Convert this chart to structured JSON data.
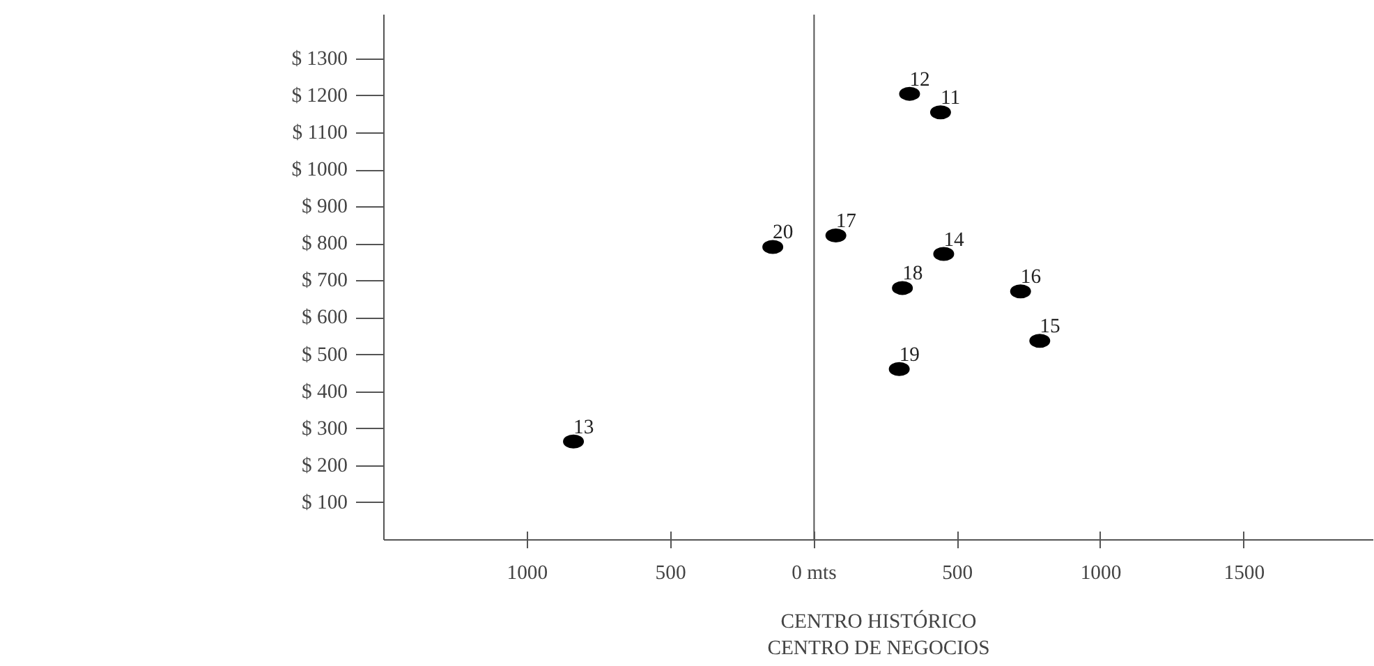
{
  "chart_data": {
    "type": "scatter",
    "xlabel": "CENTRO HISTÓRICO\nCENTRO DE NEGOCIOS",
    "xlim": [
      -1500,
      1950
    ],
    "ylim": [
      0,
      1420
    ],
    "xticks": [
      {
        "value": -1000,
        "label": "1000"
      },
      {
        "value": -500,
        "label": "500"
      },
      {
        "value": 0,
        "label": "0 mts"
      },
      {
        "value": 500,
        "label": "500"
      },
      {
        "value": 1000,
        "label": "1000"
      },
      {
        "value": 1500,
        "label": "1500"
      }
    ],
    "yticks": [
      {
        "value": 100,
        "label": "$ 100"
      },
      {
        "value": 200,
        "label": "$ 200"
      },
      {
        "value": 300,
        "label": "$ 300"
      },
      {
        "value": 400,
        "label": "$ 400"
      },
      {
        "value": 500,
        "label": "$ 500"
      },
      {
        "value": 600,
        "label": "$ 600"
      },
      {
        "value": 700,
        "label": "$ 700"
      },
      {
        "value": 800,
        "label": "$ 800"
      },
      {
        "value": 900,
        "label": "$ 900"
      },
      {
        "value": 1000,
        "label": "$ 1000"
      },
      {
        "value": 1100,
        "label": "$ 1100"
      },
      {
        "value": 1200,
        "label": "$ 1200"
      },
      {
        "value": 1300,
        "label": "$ 1300"
      }
    ],
    "grid": false,
    "marker": "circle",
    "ref_lines": [
      {
        "axis": "x",
        "value": 0,
        "color": "#555555"
      }
    ],
    "series": [
      {
        "name": "12",
        "color": "#000000",
        "x": [
          333
        ],
        "values": [
          1206
        ]
      },
      {
        "name": "11",
        "color": "#000000",
        "x": [
          441
        ],
        "values": [
          1156
        ]
      },
      {
        "name": "20",
        "color": "#000000",
        "x": [
          -144
        ],
        "values": [
          792
        ]
      },
      {
        "name": "17",
        "color": "#000000",
        "x": [
          76
        ],
        "values": [
          823
        ]
      },
      {
        "name": "14",
        "color": "#000000",
        "x": [
          452
        ],
        "values": [
          773
        ]
      },
      {
        "name": "18",
        "color": "#000000",
        "x": [
          308
        ],
        "values": [
          681
        ]
      },
      {
        "name": "16",
        "color": "#000000",
        "x": [
          720
        ],
        "values": [
          672
        ]
      },
      {
        "name": "15",
        "color": "#000000",
        "x": [
          787
        ],
        "values": [
          538
        ]
      },
      {
        "name": "19",
        "color": "#000000",
        "x": [
          297
        ],
        "values": [
          462
        ]
      },
      {
        "name": "13",
        "color": "#000000",
        "x": [
          -839
        ],
        "values": [
          266
        ]
      }
    ]
  }
}
